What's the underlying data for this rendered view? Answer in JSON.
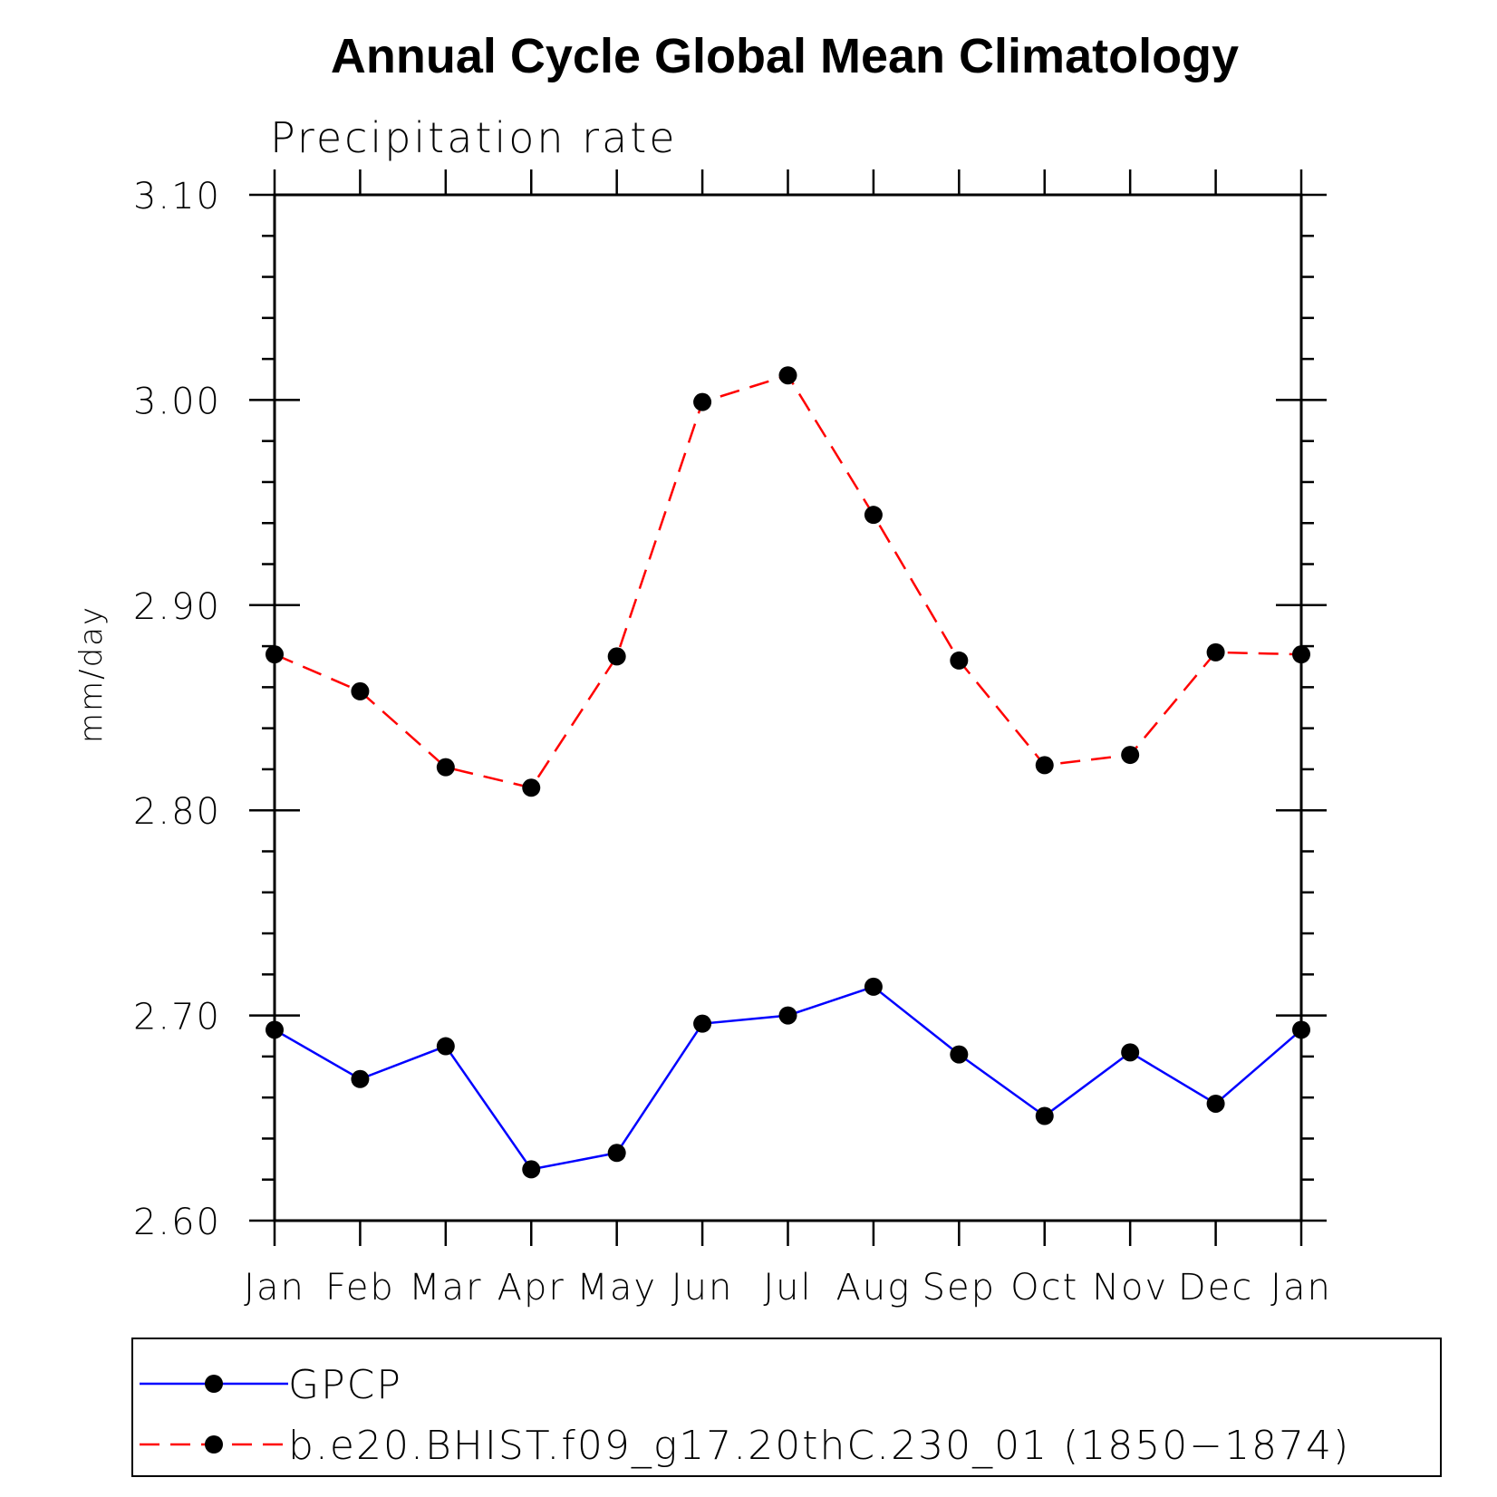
{
  "chart_data": {
    "type": "line",
    "title": "Annual Cycle Global Mean Climatology",
    "subtitle": "Precipitation rate",
    "xlabel": "",
    "ylabel": "mm/day",
    "categories": [
      "Jan",
      "Feb",
      "Mar",
      "Apr",
      "May",
      "Jun",
      "Jul",
      "Aug",
      "Sep",
      "Oct",
      "Nov",
      "Dec",
      "Jan"
    ],
    "ylim": [
      2.6,
      3.1
    ],
    "yticks": [
      "2.60",
      "2.70",
      "2.80",
      "2.90",
      "3.00",
      "3.10"
    ],
    "grid": false,
    "legend_position": "bottom",
    "series": [
      {
        "name": "GPCP",
        "color": "#0000ff",
        "line_style": "solid",
        "marker": "filled-circle",
        "values": [
          2.693,
          2.669,
          2.685,
          2.625,
          2.633,
          2.696,
          2.7,
          2.714,
          2.681,
          2.651,
          2.682,
          2.657,
          2.693
        ]
      },
      {
        "name": "b.e20.BHIST.f09_g17.20thC.230_01 (1850−1874)",
        "color": "#ff0000",
        "line_style": "dashed",
        "marker": "filled-circle",
        "values": [
          2.876,
          2.858,
          2.821,
          2.811,
          2.875,
          2.999,
          3.012,
          2.944,
          2.873,
          2.822,
          2.827,
          2.877,
          2.876
        ]
      }
    ]
  }
}
